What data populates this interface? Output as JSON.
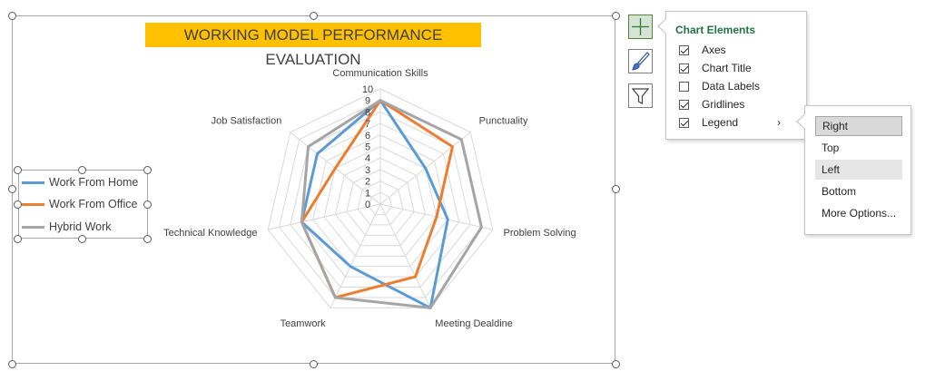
{
  "chart_data": {
    "type": "radar",
    "title": "WORKING MODEL PERFORMANCE EVALUATION",
    "categories": [
      "Communication Skills",
      "Punctuality",
      "Problem Solving",
      "Meeting Dealdine",
      "Teamwork",
      "Technical Knowledge",
      "Job Satisfaction"
    ],
    "series": [
      {
        "name": "Work From Home",
        "color": "#5b9bd5",
        "values": [
          9,
          5,
          6,
          10,
          6,
          7,
          7
        ]
      },
      {
        "name": "Work From Office",
        "color": "#ed7d31",
        "values": [
          9,
          8,
          5,
          7,
          9,
          7,
          5
        ]
      },
      {
        "name": "Hybrid Work",
        "color": "#a5a5a5",
        "values": [
          9,
          9,
          9,
          10,
          9,
          7,
          8
        ]
      }
    ],
    "ticks": [
      "0",
      "1",
      "2",
      "3",
      "4",
      "5",
      "6",
      "7",
      "8",
      "9",
      "10"
    ],
    "rlim": [
      0,
      10
    ],
    "gridlines": true,
    "legend_position": "left"
  },
  "chart_elements_panel": {
    "title": "Chart Elements",
    "items": [
      {
        "label": "Axes",
        "checked": true
      },
      {
        "label": "Chart Title",
        "checked": true
      },
      {
        "label": "Data Labels",
        "checked": false
      },
      {
        "label": "Gridlines",
        "checked": true
      },
      {
        "label": "Legend",
        "checked": true
      }
    ]
  },
  "legend_submenu": {
    "options": [
      "Right",
      "Top",
      "Left",
      "Bottom",
      "More Options..."
    ]
  },
  "side_buttons": {
    "elements": "plus-icon",
    "styles": "paintbrush-icon",
    "filters": "funnel-icon"
  }
}
